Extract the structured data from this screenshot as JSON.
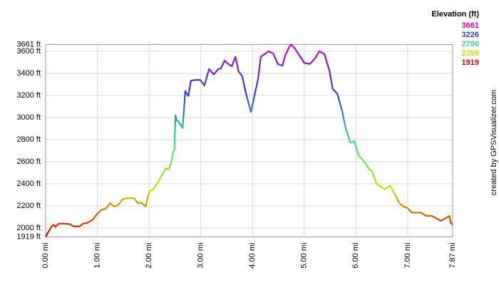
{
  "chart_data": {
    "type": "line",
    "legend_title": "Elevation (ft)",
    "legend": [
      {
        "value": 3661,
        "color": "#d000d0"
      },
      {
        "value": 3226,
        "color": "#3040d0"
      },
      {
        "value": 2790,
        "color": "#30e090"
      },
      {
        "value": 2355,
        "color": "#c8e000"
      },
      {
        "value": 1919,
        "color": "#d00000"
      }
    ],
    "credit": "created by GPSVisualizer.com",
    "x": [
      0,
      0.04,
      0.11,
      0.15,
      0.19,
      0.25,
      0.36,
      0.47,
      0.54,
      0.66,
      0.72,
      0.8,
      0.91,
      0.98,
      1.08,
      1.16,
      1.25,
      1.32,
      1.39,
      1.49,
      1.57,
      1.71,
      1.78,
      1.85,
      1.93,
      2.01,
      2.08,
      2.18,
      2.26,
      2.32,
      2.38,
      2.43,
      2.47,
      2.49,
      2.51,
      2.53,
      2.58,
      2.65,
      2.7,
      2.76,
      2.81,
      2.91,
      2.99,
      3.07,
      3.16,
      3.25,
      3.34,
      3.39,
      3.46,
      3.53,
      3.6,
      3.67,
      3.73,
      3.8,
      3.87,
      3.97,
      4.05,
      4.11,
      4.16,
      4.25,
      4.31,
      4.4,
      4.49,
      4.58,
      4.63,
      4.7,
      4.74,
      4.82,
      4.91,
      5.0,
      5.11,
      5.21,
      5.29,
      5.39,
      5.49,
      5.55,
      5.64,
      5.73,
      5.8,
      5.89,
      5.97,
      6.05,
      6.15,
      6.26,
      6.31,
      6.4,
      6.49,
      6.56,
      6.66,
      6.77,
      6.84,
      6.92,
      7.0,
      7.08,
      7.25,
      7.36,
      7.47,
      7.55,
      7.64,
      7.74,
      7.81,
      7.83,
      7.87
    ],
    "values": [
      1919,
      1955,
      2010,
      2030,
      2010,
      2040,
      2040,
      2035,
      2015,
      2015,
      2040,
      2045,
      2075,
      2120,
      2165,
      2175,
      2225,
      2195,
      2205,
      2260,
      2270,
      2270,
      2225,
      2230,
      2195,
      2335,
      2350,
      2420,
      2485,
      2540,
      2530,
      2595,
      2695,
      2710,
      3020,
      2980,
      2955,
      2905,
      3240,
      3195,
      3335,
      3340,
      3340,
      3290,
      3440,
      3390,
      3440,
      3445,
      3515,
      3485,
      3465,
      3550,
      3420,
      3375,
      3225,
      3050,
      3225,
      3355,
      3550,
      3580,
      3600,
      3580,
      3485,
      3470,
      3560,
      3630,
      3661,
      3625,
      3560,
      3495,
      3485,
      3535,
      3600,
      3575,
      3420,
      3260,
      3215,
      3065,
      2905,
      2775,
      2785,
      2660,
      2605,
      2530,
      2515,
      2400,
      2370,
      2350,
      2385,
      2290,
      2225,
      2195,
      2180,
      2140,
      2140,
      2110,
      2110,
      2090,
      2065,
      2090,
      2110,
      2050,
      2030
    ],
    "xlim": [
      0,
      7.87
    ],
    "ylim": [
      1919,
      3661
    ],
    "xticks": [
      {
        "value": 0,
        "label": "0.00 mi"
      },
      {
        "value": 1,
        "label": "1.00 mi"
      },
      {
        "value": 2,
        "label": "2.00 mi"
      },
      {
        "value": 3,
        "label": "3.00 mi"
      },
      {
        "value": 4,
        "label": "4.00 mi"
      },
      {
        "value": 5,
        "label": "5.00 mi"
      },
      {
        "value": 6,
        "label": "6.00 mi"
      },
      {
        "value": 7,
        "label": "7.00 mi"
      },
      {
        "value": 7.87,
        "label": "7.87 mi"
      }
    ],
    "yticks": [
      {
        "value": 1919,
        "label": "1919 ft"
      },
      {
        "value": 2000,
        "label": "2000 ft"
      },
      {
        "value": 2200,
        "label": "2200 ft"
      },
      {
        "value": 2400,
        "label": "2400 ft"
      },
      {
        "value": 2600,
        "label": "2600 ft"
      },
      {
        "value": 2800,
        "label": "2800 ft"
      },
      {
        "value": 3000,
        "label": "3000 ft"
      },
      {
        "value": 3200,
        "label": "3200 ft"
      },
      {
        "value": 3400,
        "label": "3400 ft"
      },
      {
        "value": 3600,
        "label": "3600 ft"
      },
      {
        "value": 3661,
        "label": "3661 ft"
      }
    ],
    "grid": true
  }
}
